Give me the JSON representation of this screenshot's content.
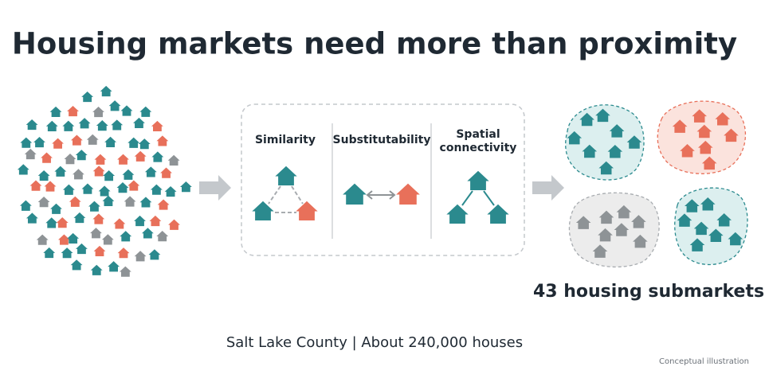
{
  "title": "Housing markets need more than proximity",
  "criteria": [
    {
      "label_lines": [
        "Similarity"
      ]
    },
    {
      "label_lines": [
        "Substitutability"
      ]
    },
    {
      "label_lines": [
        "Spatial",
        "connectivity"
      ]
    }
  ],
  "result": "43 housing submarkets",
  "footer": "Salt Lake County  |  About 240,000 houses",
  "note": "Conceptual illustration"
}
